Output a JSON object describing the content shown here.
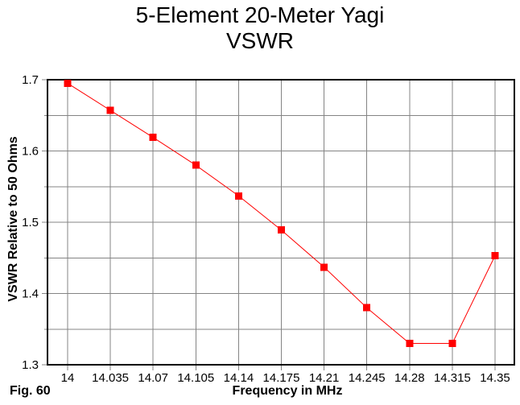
{
  "figure": {
    "fig_label": "Fig. 60"
  },
  "chart_data": {
    "type": "line",
    "title": "5-Element 20-Meter Yagi",
    "subtitle": "VSWR",
    "xlabel": "Frequency in MHz",
    "ylabel": "VSWR Relative to 50 Ohms",
    "x": [
      14,
      14.035,
      14.07,
      14.105,
      14.14,
      14.175,
      14.21,
      14.245,
      14.28,
      14.315,
      14.35
    ],
    "x_tick_labels": [
      "14",
      "14.035",
      "14.07",
      "14.105",
      "14.14",
      "14.175",
      "14.21",
      "14.245",
      "14.28",
      "14.315",
      "14.35"
    ],
    "series": [
      {
        "name": "VSWR",
        "values": [
          1.695,
          1.657,
          1.619,
          1.58,
          1.537,
          1.489,
          1.437,
          1.38,
          1.33,
          1.33,
          1.453
        ]
      }
    ],
    "ylim": [
      1.3,
      1.7
    ],
    "y_ticks": [
      1.3,
      1.4,
      1.5,
      1.6,
      1.7
    ],
    "y_tick_labels": [
      "1.3",
      "1.4",
      "1.5",
      "1.6",
      "1.7"
    ],
    "y_grid_step": 0.05,
    "grid": true,
    "legend": "none",
    "marker": "square",
    "line_color": "#ff0000",
    "marker_color": "#ff0000",
    "grid_color": "#848484",
    "axis_color": "#000000",
    "text_color": "#000000"
  }
}
